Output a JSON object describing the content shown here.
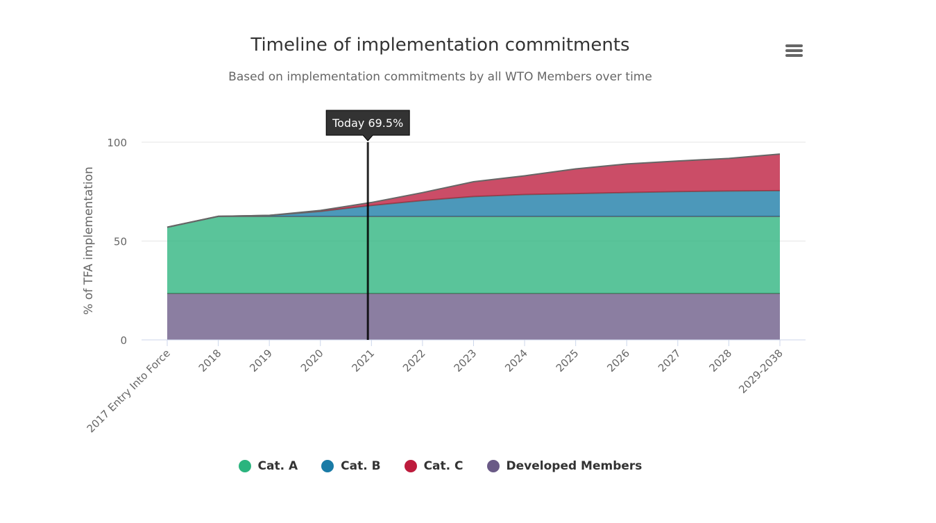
{
  "chart_data": {
    "type": "area",
    "stacked": true,
    "title": "Timeline of implementation commitments",
    "subtitle": "Based on implementation commitments by all WTO Members over time",
    "ylabel": "% of TFA implementation",
    "xlabel": "",
    "ylim": [
      0,
      100
    ],
    "yticks": [
      0,
      50,
      100
    ],
    "categories": [
      "2017 Entry Into Force",
      "2018",
      "2019",
      "2020",
      "2021",
      "2022",
      "2023",
      "2024",
      "2025",
      "2026",
      "2027",
      "2028",
      "2029-2038"
    ],
    "series": [
      {
        "name": "Developed Members",
        "color": "#6a5a86",
        "values": [
          23.5,
          23.5,
          23.5,
          23.5,
          23.5,
          23.5,
          23.5,
          23.5,
          23.5,
          23.5,
          23.5,
          23.5,
          23.5
        ]
      },
      {
        "name": "Cat. A",
        "color": "#2bb47e",
        "values": [
          33.5,
          39,
          39,
          39,
          39,
          39,
          39,
          39,
          39,
          39,
          39,
          39,
          39
        ]
      },
      {
        "name": "Cat. B",
        "color": "#1a7ba6",
        "values": [
          0,
          0,
          0.5,
          2.5,
          5.5,
          8,
          10,
          11,
          11.5,
          12,
          12.5,
          12.8,
          13
        ]
      },
      {
        "name": "Cat. C",
        "color": "#bd1b3c",
        "values": [
          0,
          0,
          0,
          0.5,
          1.5,
          4,
          7.5,
          9.5,
          12.5,
          14.5,
          15.5,
          16.5,
          18.5
        ]
      }
    ],
    "marker": {
      "label": "Today 69.5%",
      "position": 3.93
    },
    "grid": true,
    "legend_position": "bottom"
  },
  "legend_items": [
    {
      "name": "Cat. A",
      "color": "#2bb47e"
    },
    {
      "name": "Cat. B",
      "color": "#1a7ba6"
    },
    {
      "name": "Cat. C",
      "color": "#bd1b3c"
    },
    {
      "name": "Developed Members",
      "color": "#6a5a86"
    }
  ]
}
